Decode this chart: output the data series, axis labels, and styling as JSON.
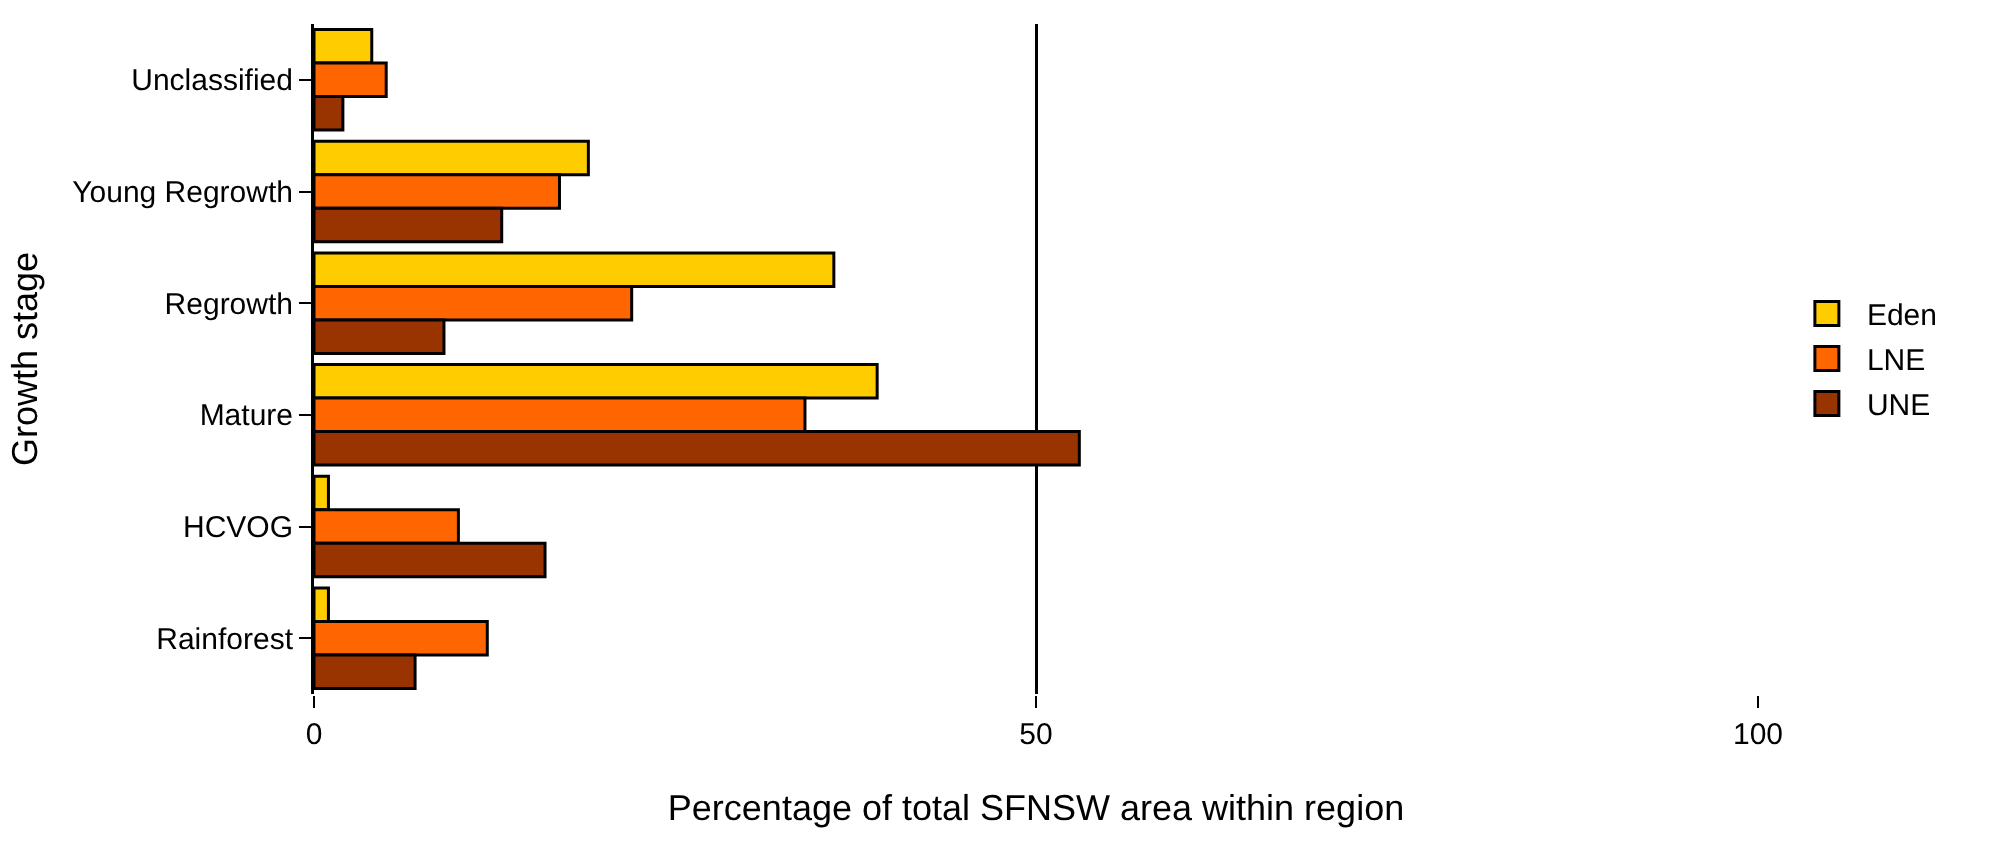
{
  "chart_data": {
    "type": "bar",
    "orientation": "horizontal",
    "xlabel": "Percentage of total SFNSW area within region",
    "ylabel": "Growth stage",
    "categories": [
      "Unclassified",
      "Young Regrowth",
      "Regrowth",
      "Mature",
      "HCVOG",
      "Rainforest"
    ],
    "series": [
      {
        "name": "Eden",
        "color": "#ffcc00",
        "values": [
          4,
          19,
          36,
          39,
          1,
          1
        ]
      },
      {
        "name": "LNE",
        "color": "#ff6600",
        "values": [
          5,
          17,
          22,
          34,
          10,
          12
        ]
      },
      {
        "name": "UNE",
        "color": "#993300",
        "values": [
          2,
          13,
          9,
          53,
          16,
          7
        ]
      }
    ],
    "xlim": [
      0,
      100
    ],
    "xticks": [
      0,
      50,
      100
    ],
    "grid": "x",
    "legend": "right"
  }
}
